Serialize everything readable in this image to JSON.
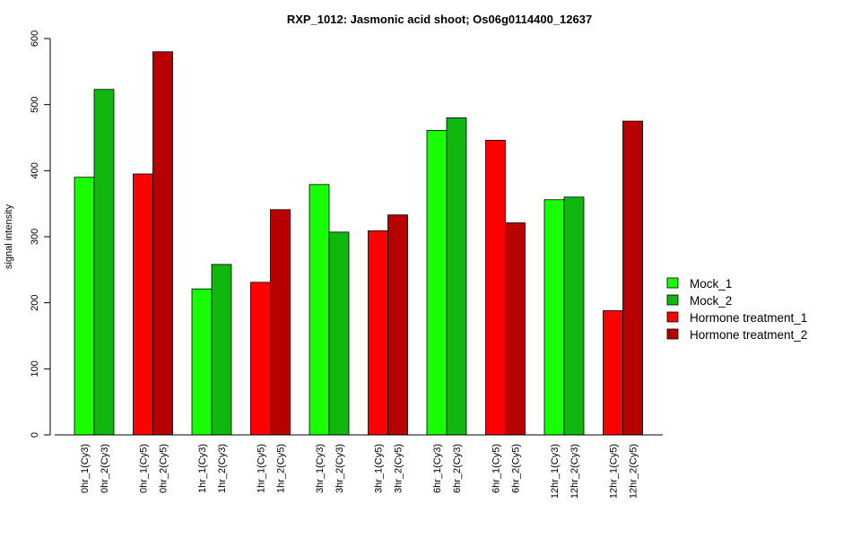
{
  "chart_data": {
    "type": "bar",
    "title": "RXP_1012: Jasmonic acid shoot; Os06g0114400_12637",
    "xlabel": "",
    "ylabel": "signal intensity",
    "ylim": [
      0,
      600
    ],
    "yticks": [
      0,
      100,
      200,
      300,
      400,
      500,
      600
    ],
    "grid": false,
    "legend_position": "right",
    "series": [
      {
        "name": "Mock_1",
        "color": "#17ff00"
      },
      {
        "name": "Mock_2",
        "color": "#0fb70f"
      },
      {
        "name": "Hormone treatment_1",
        "color": "#ff0000"
      },
      {
        "name": "Hormone treatment_2",
        "color": "#b80000"
      }
    ],
    "groups": [
      {
        "bars": [
          {
            "label": "0hr_1(Cy3)",
            "value": 390,
            "series": 0
          },
          {
            "label": "0hr_2(Cy3)",
            "value": 523,
            "series": 1
          }
        ]
      },
      {
        "bars": [
          {
            "label": "0hr_1(Cy5)",
            "value": 395,
            "series": 2
          },
          {
            "label": "0hr_2(Cy5)",
            "value": 580,
            "series": 3
          }
        ]
      },
      {
        "bars": [
          {
            "label": "1hr_1(Cy3)",
            "value": 221,
            "series": 0
          },
          {
            "label": "1hr_2(Cy3)",
            "value": 258,
            "series": 1
          }
        ]
      },
      {
        "bars": [
          {
            "label": "1hr_1(Cy5)",
            "value": 231,
            "series": 2
          },
          {
            "label": "1hr_2(Cy5)",
            "value": 341,
            "series": 3
          }
        ]
      },
      {
        "bars": [
          {
            "label": "3hr_1(Cy3)",
            "value": 379,
            "series": 0
          },
          {
            "label": "3hr_2(Cy3)",
            "value": 307,
            "series": 1
          }
        ]
      },
      {
        "bars": [
          {
            "label": "3hr_1(Cy5)",
            "value": 309,
            "series": 2
          },
          {
            "label": "3hr_2(Cy5)",
            "value": 333,
            "series": 3
          }
        ]
      },
      {
        "bars": [
          {
            "label": "6hr_1(Cy3)",
            "value": 461,
            "series": 0
          },
          {
            "label": "6hr_2(Cy3)",
            "value": 480,
            "series": 1
          }
        ]
      },
      {
        "bars": [
          {
            "label": "6hr_1(Cy5)",
            "value": 446,
            "series": 2
          },
          {
            "label": "6hr_2(Cy5)",
            "value": 321,
            "series": 3
          }
        ]
      },
      {
        "bars": [
          {
            "label": "12hr_1(Cy3)",
            "value": 356,
            "series": 0
          },
          {
            "label": "12hr_2(Cy3)",
            "value": 360,
            "series": 1
          }
        ]
      },
      {
        "bars": [
          {
            "label": "12hr_1(Cy5)",
            "value": 188,
            "series": 2
          },
          {
            "label": "12hr_2(Cy5)",
            "value": 475,
            "series": 3
          }
        ]
      }
    ]
  }
}
